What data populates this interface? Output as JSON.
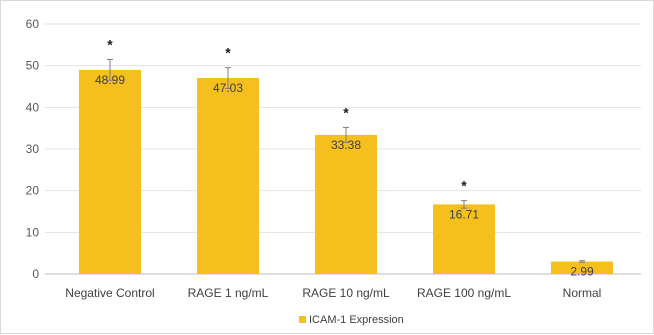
{
  "chart_data": {
    "type": "bar",
    "categories": [
      "Negative Control",
      "RAGE 1 ng/mL",
      "RAGE 10 ng/mL",
      "RAGE 100 ng/mL",
      "Normal"
    ],
    "series": [
      {
        "name": "ICAM-1 Expression",
        "values": [
          48.99,
          47.03,
          33.38,
          16.71,
          2.99
        ],
        "errors": [
          2.5,
          2.5,
          1.8,
          0.9,
          0.2
        ],
        "significance": [
          "*",
          "*",
          "*",
          "*",
          ""
        ],
        "color": "#f5bf1d"
      }
    ],
    "data_labels": [
      "48.99",
      "47.03",
      "33.38",
      "16.71",
      "2.99"
    ],
    "ylim": [
      0,
      60
    ],
    "yticks": [
      0,
      10,
      20,
      30,
      40,
      50,
      60
    ],
    "ytick_labels": [
      "0",
      "10",
      "20",
      "30",
      "40",
      "50",
      "60"
    ],
    "grid": true,
    "legend_position": "bottom"
  }
}
